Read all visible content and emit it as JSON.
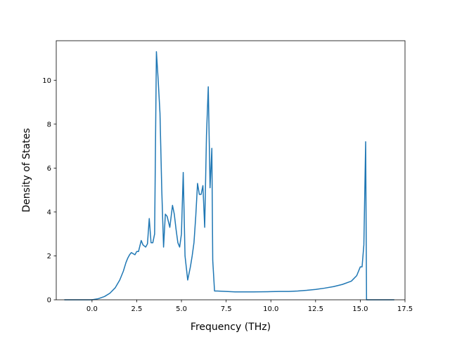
{
  "chart_data": {
    "type": "line",
    "title": "",
    "xlabel": "Frequency (THz)",
    "ylabel": "Density of States",
    "xlim": [
      -2.0,
      17.5
    ],
    "ylim": [
      0,
      11.8
    ],
    "x_ticks": [
      {
        "value": 0.0,
        "label": "0.0"
      },
      {
        "value": 2.5,
        "label": "2.5"
      },
      {
        "value": 5.0,
        "label": "5.0"
      },
      {
        "value": 7.5,
        "label": "7.5"
      },
      {
        "value": 10.0,
        "label": "10.0"
      },
      {
        "value": 12.5,
        "label": "12.5"
      },
      {
        "value": 15.0,
        "label": "15.0"
      },
      {
        "value": 17.5,
        "label": "17.5"
      }
    ],
    "y_ticks": [
      {
        "value": 0,
        "label": "0"
      },
      {
        "value": 2,
        "label": "2"
      },
      {
        "value": 4,
        "label": "4"
      },
      {
        "value": 6,
        "label": "6"
      },
      {
        "value": 8,
        "label": "8"
      },
      {
        "value": 10,
        "label": "10"
      }
    ],
    "grid": false,
    "legend": "none",
    "series": [
      {
        "color": "#1f77b4",
        "x": [
          -1.55,
          0.0,
          0.35,
          0.7,
          1.0,
          1.3,
          1.55,
          1.75,
          1.9,
          2.0,
          2.1,
          2.2,
          2.4,
          2.5,
          2.6,
          2.75,
          2.85,
          3.0,
          3.1,
          3.2,
          3.3,
          3.4,
          3.5,
          3.6,
          3.7,
          3.8,
          3.9,
          4.0,
          4.1,
          4.2,
          4.35,
          4.5,
          4.6,
          4.7,
          4.8,
          4.9,
          5.0,
          5.1,
          5.2,
          5.35,
          5.5,
          5.6,
          5.7,
          5.8,
          5.9,
          6.0,
          6.1,
          6.2,
          6.3,
          6.4,
          6.5,
          6.6,
          6.7,
          6.75,
          6.85,
          7.0,
          7.5,
          8.0,
          9.0,
          10.0,
          10.5,
          11.0,
          11.5,
          12.0,
          12.5,
          13.0,
          13.5,
          14.0,
          14.5,
          14.8,
          15.0,
          15.1,
          15.2,
          15.3,
          15.35,
          15.4,
          15.5,
          16.0,
          16.9
        ],
        "y": [
          0.0,
          0.0,
          0.05,
          0.15,
          0.3,
          0.55,
          0.9,
          1.3,
          1.7,
          1.9,
          2.05,
          2.15,
          2.05,
          2.2,
          2.2,
          2.7,
          2.5,
          2.4,
          2.55,
          3.7,
          2.6,
          2.6,
          3.0,
          11.3,
          10.0,
          8.5,
          5.0,
          2.4,
          3.9,
          3.8,
          3.3,
          4.3,
          3.9,
          3.2,
          2.6,
          2.4,
          3.0,
          5.8,
          2.0,
          0.9,
          1.5,
          2.0,
          2.6,
          3.8,
          5.3,
          4.8,
          4.8,
          5.2,
          3.3,
          7.5,
          9.7,
          5.1,
          6.9,
          1.8,
          0.4,
          0.4,
          0.38,
          0.36,
          0.36,
          0.37,
          0.38,
          0.38,
          0.4,
          0.43,
          0.47,
          0.53,
          0.6,
          0.7,
          0.85,
          1.1,
          1.5,
          1.5,
          2.5,
          7.2,
          0.0,
          0.0,
          0.0,
          0.0,
          0.0
        ]
      }
    ]
  }
}
